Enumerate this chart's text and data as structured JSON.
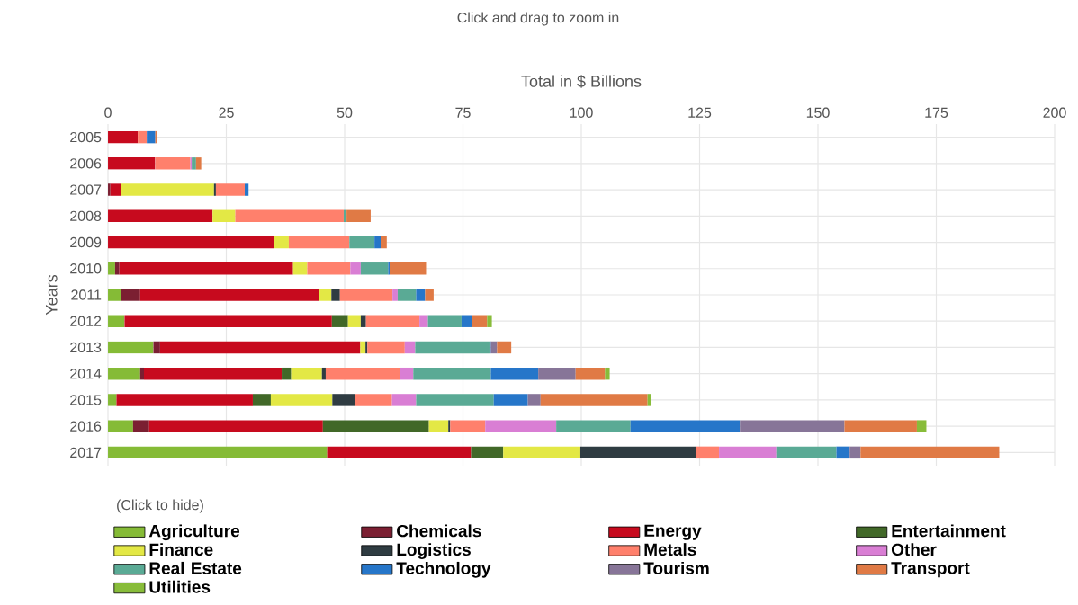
{
  "chart_data": {
    "type": "bar",
    "orientation": "horizontal",
    "stacked": true,
    "annotations": [
      "Click and drag to zoom in"
    ],
    "xlabel": "Total in $ Billions",
    "ylabel": "Years",
    "legend_title": "(Click to hide)",
    "legend": "bottom",
    "grid": true,
    "xlim": [
      0,
      200
    ],
    "xticks": [
      0,
      25,
      50,
      75,
      100,
      125,
      150,
      175,
      200
    ],
    "categories": [
      "2005",
      "2006",
      "2007",
      "2008",
      "2009",
      "2010",
      "2011",
      "2012",
      "2013",
      "2014",
      "2015",
      "2016",
      "2017"
    ],
    "series": [
      {
        "name": "Agriculture",
        "color": "#85bb36",
        "values": [
          null,
          null,
          null,
          null,
          null,
          1.5,
          2.7,
          3.5,
          9.6,
          6.8,
          1.8,
          5.3,
          46.3
        ]
      },
      {
        "name": "Chemicals",
        "color": "#7b1f32",
        "values": [
          null,
          null,
          0.5,
          null,
          null,
          0.9,
          4.1,
          null,
          1.4,
          0.8,
          null,
          3.4,
          null
        ]
      },
      {
        "name": "Energy",
        "color": "#c70a1e",
        "values": [
          6.3,
          10.0,
          2.3,
          22.1,
          35.0,
          36.7,
          37.7,
          43.8,
          42.3,
          29.1,
          28.8,
          36.7,
          30.4
        ]
      },
      {
        "name": "Entertainment",
        "color": "#416828",
        "values": [
          null,
          null,
          null,
          null,
          null,
          null,
          null,
          3.4,
          null,
          2.0,
          3.8,
          22.4,
          6.8
        ]
      },
      {
        "name": "Finance",
        "color": "#e3e845",
        "values": [
          null,
          null,
          19.6,
          4.8,
          3.2,
          3.0,
          2.7,
          2.7,
          1.1,
          6.5,
          13.0,
          4.1,
          16.3
        ]
      },
      {
        "name": "Logistics",
        "color": "#2f3c42",
        "values": [
          null,
          null,
          0.4,
          null,
          null,
          null,
          1.8,
          1.1,
          0.4,
          0.8,
          4.8,
          0.4,
          24.5
        ]
      },
      {
        "name": "Metals",
        "color": "#ff806c",
        "values": [
          1.9,
          7.4,
          6.1,
          22.9,
          12.8,
          9.1,
          11.1,
          11.3,
          7.9,
          15.6,
          7.8,
          7.4,
          4.8
        ]
      },
      {
        "name": "Other",
        "color": "#d97ed4",
        "values": [
          null,
          0.3,
          null,
          null,
          null,
          2.2,
          1.1,
          1.8,
          2.2,
          2.9,
          5.1,
          15.0,
          12.1
        ]
      },
      {
        "name": "Real Estate",
        "color": "#5aaa95",
        "values": [
          null,
          0.9,
          null,
          0.6,
          5.3,
          5.8,
          3.9,
          7.1,
          15.7,
          16.4,
          16.4,
          15.7,
          12.7
        ]
      },
      {
        "name": "Technology",
        "color": "#2676c9",
        "values": [
          1.8,
          null,
          0.8,
          null,
          1.3,
          0.3,
          1.9,
          2.3,
          0.3,
          10.0,
          7.2,
          23.1,
          2.8
        ]
      },
      {
        "name": "Tourism",
        "color": "#877598",
        "values": [
          null,
          null,
          null,
          null,
          null,
          null,
          null,
          null,
          1.3,
          7.9,
          2.7,
          22.1,
          2.3
        ]
      },
      {
        "name": "Transport",
        "color": "#e07a45",
        "values": [
          0.4,
          1.1,
          null,
          5.1,
          1.3,
          7.7,
          1.8,
          3.1,
          3.0,
          6.2,
          22.6,
          15.3,
          29.3
        ]
      },
      {
        "name": "Utilities",
        "color": "#88bc3a",
        "values": [
          null,
          null,
          null,
          null,
          null,
          null,
          null,
          1.0,
          null,
          1.0,
          0.8,
          2.0,
          null
        ]
      }
    ]
  }
}
